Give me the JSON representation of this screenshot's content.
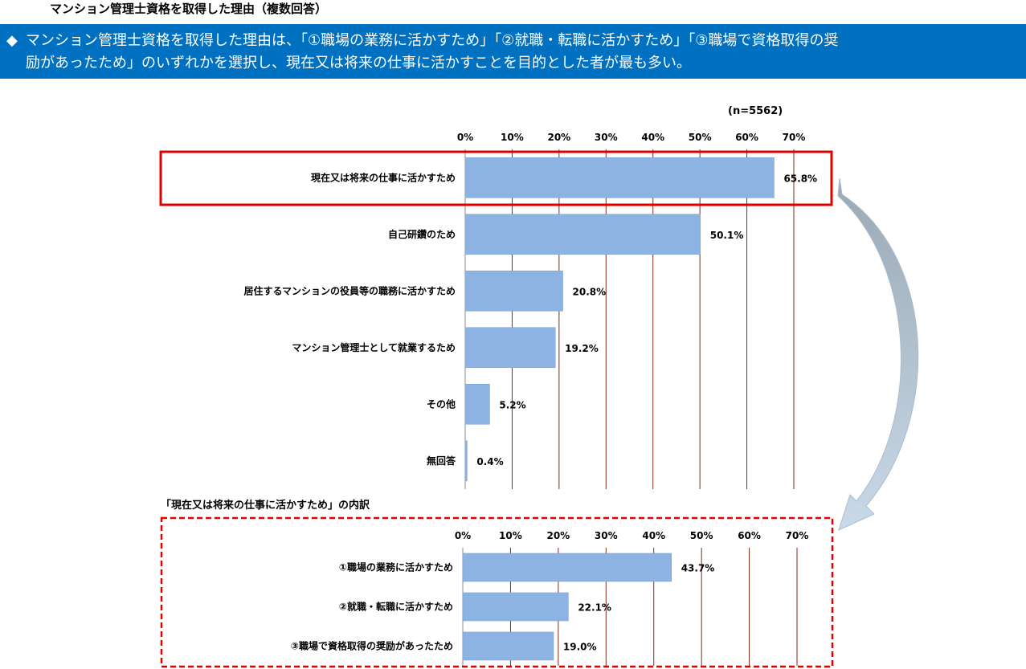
{
  "page": {
    "title": "マンション管理士資格を取得した理由（複数回答）"
  },
  "banner": {
    "bullet": "◆",
    "line1": "マンション管理士資格を取得した理由は、「①職場の業務に活かすため」「②就職・転職に活かすため」「③職場で資格取得の奨",
    "line2": "励があったため」のいずれかを選択し、現在又は将来の仕事に活かすことを目的とした者が最も多い。"
  },
  "colors": {
    "banner_bg": "#0070c0",
    "bar": "#8db3e2",
    "gridline": "#7f2b16",
    "highlight": "#e00000",
    "arrow": "#b6c9d8"
  },
  "chart_data": [
    {
      "type": "bar",
      "orientation": "horizontal",
      "sample_note": "(n=5562)",
      "categories": [
        "現在又は将来の仕事に活かすため",
        "自己研鑽のため",
        "居住するマンションの役員等の職務に活かすため",
        "マンション管理士として就業するため",
        "その他",
        "無回答"
      ],
      "values": [
        65.8,
        50.1,
        20.8,
        19.2,
        5.2,
        0.4
      ],
      "value_labels": [
        "65.8%",
        "50.1%",
        "20.8%",
        "19.2%",
        "5.2%",
        "0.4%"
      ],
      "xlim": [
        0,
        70
      ],
      "ticks": [
        "0%",
        "10%",
        "20%",
        "30%",
        "40%",
        "50%",
        "60%",
        "70%"
      ],
      "grid": true,
      "highlighted_category": "現在又は将来の仕事に活かすため"
    },
    {
      "type": "bar",
      "orientation": "horizontal",
      "title": "「現在又は将来の仕事に活かすため」の内訳",
      "categories": [
        "①職場の業務に活かすため",
        "②就職・転職に活かすため",
        "③職場で資格取得の奨励があったため"
      ],
      "values": [
        43.7,
        22.1,
        19.0
      ],
      "value_labels": [
        "43.7%",
        "22.1%",
        "19.0%"
      ],
      "xlim": [
        0,
        70
      ],
      "ticks": [
        "0%",
        "10%",
        "20%",
        "30%",
        "40%",
        "50%",
        "60%",
        "70%"
      ],
      "grid": true
    }
  ]
}
